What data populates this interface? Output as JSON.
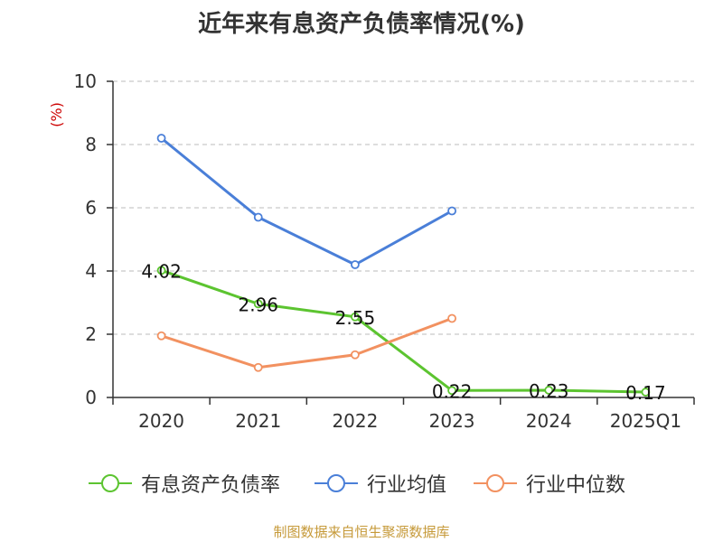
{
  "title": "近年来有息资产负债率情况(%)",
  "source": "制图数据来自恒生聚源数据库",
  "colors": {
    "axis": "#333333",
    "grid": "#bbbbbb",
    "unit": "#cc0000"
  },
  "chart_data": {
    "type": "line",
    "title": "近年来有息资产负债率情况(%)",
    "ylabel": "(%)",
    "xlabel": "",
    "ylim": [
      0,
      10
    ],
    "yticks": [
      0,
      2,
      4,
      6,
      8,
      10
    ],
    "grid": true,
    "legend_position": "bottom",
    "categories": [
      "2020",
      "2021",
      "2022",
      "2023",
      "2024",
      "2025Q1"
    ],
    "series": [
      {
        "name": "有息资产负债率",
        "color": "#5cc430",
        "values": [
          4.02,
          2.96,
          2.55,
          0.22,
          0.23,
          0.17
        ],
        "labels": [
          "4.02",
          "2.96",
          "2.55",
          "0.22",
          "0.23",
          "0.17"
        ]
      },
      {
        "name": "行业均值",
        "color": "#4a7fd8",
        "values": [
          8.2,
          5.7,
          4.2,
          5.9,
          null,
          null
        ]
      },
      {
        "name": "行业中位数",
        "color": "#f29160",
        "values": [
          1.95,
          0.95,
          1.35,
          2.5,
          null,
          null
        ]
      }
    ]
  }
}
